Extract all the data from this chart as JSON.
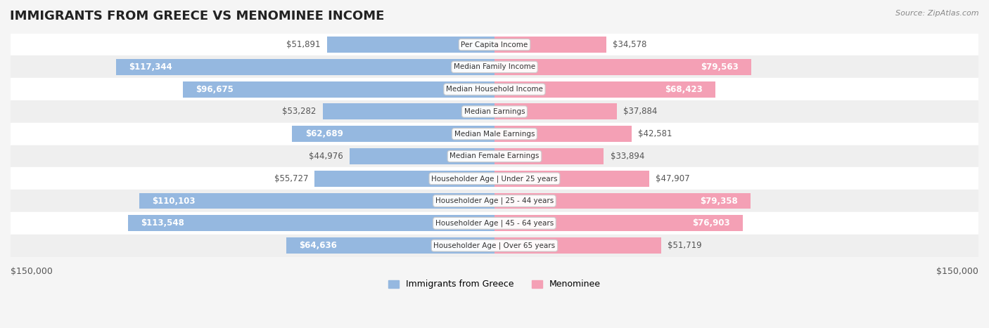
{
  "title": "IMMIGRANTS FROM GREECE VS MENOMINEE INCOME",
  "source": "Source: ZipAtlas.com",
  "categories": [
    "Per Capita Income",
    "Median Family Income",
    "Median Household Income",
    "Median Earnings",
    "Median Male Earnings",
    "Median Female Earnings",
    "Householder Age | Under 25 years",
    "Householder Age | 25 - 44 years",
    "Householder Age | 45 - 64 years",
    "Householder Age | Over 65 years"
  ],
  "greece_values": [
    51891,
    117344,
    96675,
    53282,
    62689,
    44976,
    55727,
    110103,
    113548,
    64636
  ],
  "menominee_values": [
    34578,
    79563,
    68423,
    37884,
    42581,
    33894,
    47907,
    79358,
    76903,
    51719
  ],
  "greece_color": "#95b8e0",
  "greece_color_dark": "#5b8ec4",
  "menominee_color": "#f4a0b5",
  "menominee_color_dark": "#e8607a",
  "max_value": 150000,
  "background_color": "#f5f5f5",
  "row_bg_color": "#ffffff",
  "row_alt_bg_color": "#f0f0f0",
  "label_fontsize": 8.5,
  "title_fontsize": 13,
  "legend_greece": "Immigrants from Greece",
  "legend_menominee": "Menominee"
}
